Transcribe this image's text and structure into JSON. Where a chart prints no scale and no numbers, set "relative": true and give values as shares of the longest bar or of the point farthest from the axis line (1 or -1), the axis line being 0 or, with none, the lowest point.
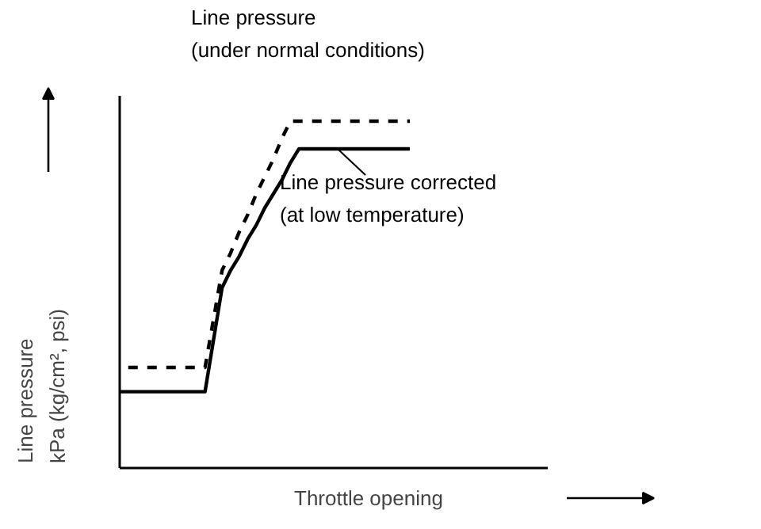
{
  "chart_data": {
    "type": "line",
    "relative": true,
    "xlabel": "Throttle opening",
    "ylabel": "Line pressure\nkPa (kg/cm², psi)",
    "tick_labels": false,
    "marker": "none",
    "categories": [
      null,
      null,
      null,
      null,
      null,
      null,
      null,
      null,
      null,
      null,
      null,
      null,
      null,
      null,
      null,
      null,
      null,
      null,
      null,
      null,
      null,
      null,
      null,
      null,
      null,
      null,
      null,
      null,
      null,
      null,
      null,
      null,
      null,
      null,
      null
    ],
    "series": [
      {
        "name": "Line pressure\n(under normal conditions)",
        "color": "#000000",
        "line_style": "dashed",
        "values": [
          null,
          0.29,
          0.29,
          0.29,
          0.29,
          0.29,
          0.29,
          0.29,
          0.29,
          0.29,
          0.29,
          0.43,
          0.57,
          0.62,
          0.68,
          0.73,
          0.79,
          0.84,
          0.89,
          0.95,
          1,
          1,
          1,
          1,
          1,
          1,
          1,
          1,
          1,
          1,
          1,
          1,
          1,
          1,
          1
        ]
      },
      {
        "name": "Line pressure corrected\n(at low temperature)",
        "color": "#000000",
        "line_style": "solid",
        "values": [
          0.22,
          0.22,
          0.22,
          0.22,
          0.22,
          0.22,
          0.22,
          0.22,
          0.22,
          0.22,
          0.22,
          0.37,
          0.52,
          0.57,
          0.61,
          0.66,
          0.7,
          0.75,
          0.79,
          0.83,
          0.88,
          0.92,
          0.92,
          0.92,
          0.92,
          0.92,
          0.92,
          0.92,
          0.92,
          0.92,
          0.92,
          0.92,
          0.92,
          0.92,
          0.92
        ]
      }
    ]
  }
}
